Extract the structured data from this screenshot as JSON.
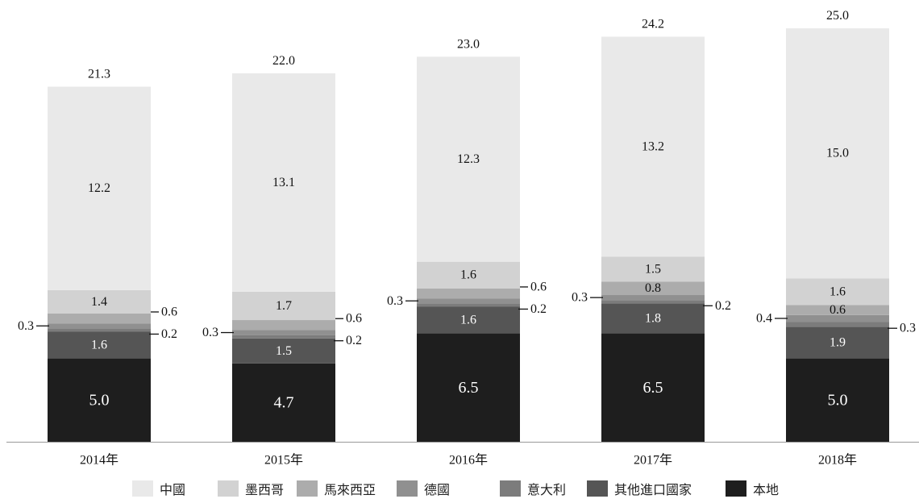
{
  "chart_data": {
    "type": "bar",
    "stacked": true,
    "categories": [
      "2014年",
      "2015年",
      "2016年",
      "2017年",
      "2018年"
    ],
    "series": [
      {
        "name": "本地",
        "color": "#1e1e1e",
        "values": [
          5.0,
          4.7,
          6.5,
          6.5,
          5.0
        ]
      },
      {
        "name": "其他進口國家",
        "color": "#555555",
        "values": [
          1.6,
          1.5,
          1.6,
          1.8,
          1.9
        ]
      },
      {
        "name": "意大利",
        "color": "#7c7c7c",
        "values": [
          0.2,
          0.2,
          0.2,
          0.2,
          0.3
        ]
      },
      {
        "name": "德國",
        "color": "#909090",
        "values": [
          0.3,
          0.3,
          0.3,
          0.3,
          0.4
        ]
      },
      {
        "name": "馬來西亞",
        "color": "#acacac",
        "values": [
          0.6,
          0.6,
          0.6,
          0.8,
          0.6
        ]
      },
      {
        "name": "墨西哥",
        "color": "#d2d2d2",
        "values": [
          1.4,
          1.7,
          1.6,
          1.5,
          1.6
        ]
      },
      {
        "name": "中國",
        "color": "#e9e9e9",
        "values": [
          12.2,
          13.1,
          12.3,
          13.2,
          15.0
        ]
      }
    ],
    "totals": [
      "21.3",
      "22.0",
      "23.0",
      "24.2",
      "25.0"
    ],
    "value_labels": [
      [
        "5.0",
        "4.7",
        "6.5",
        "6.5",
        "5.0"
      ],
      [
        "1.6",
        "1.5",
        "1.6",
        "1.8",
        "1.9"
      ],
      [
        "0.2",
        "0.2",
        "0.2",
        "0.2",
        "0.3"
      ],
      [
        "0.3",
        "0.3",
        "0.3",
        "0.3",
        "0.4"
      ],
      [
        "0.6",
        "0.6",
        "0.6",
        "0.8",
        "0.6"
      ],
      [
        "1.4",
        "1.7",
        "1.6",
        "1.5",
        "1.6"
      ],
      [
        "12.2",
        "13.1",
        "12.3",
        "13.2",
        "15.0"
      ]
    ],
    "label_placement": [
      [
        "inside",
        "inside",
        "inside",
        "inside",
        "inside"
      ],
      [
        "inside",
        "inside",
        "inside",
        "inside",
        "inside"
      ],
      [
        "right",
        "right",
        "right",
        "right",
        "right"
      ],
      [
        "left",
        "left",
        "left",
        "left",
        "left"
      ],
      [
        "right",
        "right",
        "right",
        "inside",
        "inside"
      ],
      [
        "inside",
        "inside",
        "inside",
        "inside",
        "inside"
      ],
      [
        "inside",
        "inside",
        "inside",
        "inside",
        "inside"
      ]
    ],
    "legend_order": [
      "中國",
      "墨西哥",
      "馬來西亞",
      "德國",
      "意大利",
      "其他進口國家",
      "本地"
    ],
    "legend_position": "bottom",
    "ylim": [
      0,
      25
    ],
    "grid": false,
    "xlabel": "",
    "ylabel": ""
  }
}
